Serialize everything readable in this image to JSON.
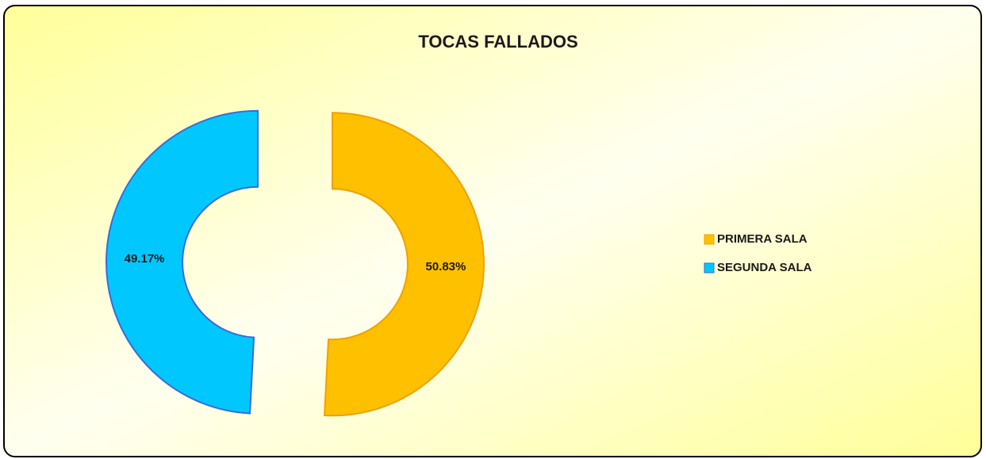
{
  "chart_data": {
    "type": "donut",
    "title": "TOCAS FALLADOS",
    "categories": [
      "PRIMERA SALA",
      "SEGUNDA SALA"
    ],
    "values": [
      50.83,
      49.17
    ],
    "value_labels": [
      "50.83%",
      "49.17%"
    ],
    "colors": [
      "#ffc000",
      "#00c8ff"
    ],
    "legend": "right"
  }
}
